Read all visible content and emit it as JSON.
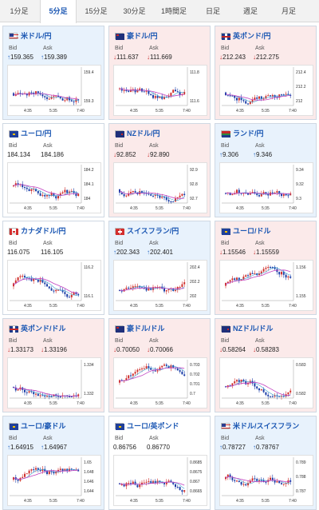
{
  "tabs": [
    {
      "label": "1分足",
      "active": false
    },
    {
      "label": "5分足",
      "active": true
    },
    {
      "label": "15分足",
      "active": false
    },
    {
      "label": "30分足",
      "active": false
    },
    {
      "label": "1時間足",
      "active": false
    },
    {
      "label": "日足",
      "active": false
    },
    {
      "label": "週足",
      "active": false
    },
    {
      "label": "月足",
      "active": false
    }
  ],
  "labels": {
    "bid": "Bid",
    "ask": "Ask"
  },
  "colors": {
    "up_bg": "#e8f2fc",
    "down_bg": "#fbeaea",
    "up": "#1f5fbf",
    "down": "#c62828",
    "candle_up": "#d0312d",
    "candle_down": "#1d3fa8",
    "ma_line": "#c040c0"
  },
  "cards": [
    {
      "pair": "米ドル/円",
      "flag": "flag-us-icon",
      "trend": "up",
      "bid": "159.365",
      "ask": "159.389",
      "ticks": [
        "159.4",
        "159.3"
      ],
      "xticks": [
        "4:35",
        "5:35",
        "7:40"
      ]
    },
    {
      "pair": "豪ドル/円",
      "flag": "flag-au-icon",
      "trend": "down",
      "bid": "111.637",
      "ask": "111.669",
      "ticks": [
        "111.8",
        "111.6"
      ],
      "xticks": [
        "4:35",
        "5:35",
        "7:40"
      ]
    },
    {
      "pair": "英ポンド/円",
      "flag": "flag-gb-icon",
      "trend": "down",
      "bid": "212.243",
      "ask": "212.275",
      "ticks": [
        "212.4",
        "212.2",
        "212"
      ],
      "xticks": [
        "4:35",
        "5:35",
        "7:40"
      ]
    },
    {
      "pair": "ユーロ/円",
      "flag": "flag-eu-icon",
      "trend": "flat",
      "bid": "184.134",
      "ask": "184.186",
      "ticks": [
        "184.2",
        "184.1",
        "184"
      ],
      "xticks": [
        "4:35",
        "5:35",
        "7:40"
      ]
    },
    {
      "pair": "NZドル/円",
      "flag": "flag-nz-icon",
      "trend": "down",
      "bid": "92.852",
      "ask": "92.890",
      "ticks": [
        "92.9",
        "92.8",
        "92.7"
      ],
      "xticks": [
        "4:35",
        "5:35",
        "7:40"
      ]
    },
    {
      "pair": "ランド/円",
      "flag": "flag-za-icon",
      "trend": "up",
      "bid": "9.306",
      "ask": "9.346",
      "ticks": [
        "9.34",
        "9.32",
        "9.3"
      ],
      "xticks": [
        "4:35",
        "5:35",
        "7:40"
      ]
    },
    {
      "pair": "カナダドル/円",
      "flag": "flag-ca-icon",
      "trend": "flat",
      "bid": "116.075",
      "ask": "116.105",
      "ticks": [
        "116.2",
        "116.1"
      ],
      "xticks": [
        "4:35",
        "5:35",
        "7:40"
      ]
    },
    {
      "pair": "スイスフラン/円",
      "flag": "flag-ch-icon",
      "trend": "up",
      "bid": "202.343",
      "ask": "202.401",
      "ticks": [
        "202.4",
        "202.2",
        "202"
      ],
      "xticks": [
        "4:35",
        "5:35",
        "7:40"
      ]
    },
    {
      "pair": "ユーロ/ドル",
      "flag": "flag-eu-icon",
      "trend": "down",
      "bid": "1.15546",
      "ask": "1.15559",
      "ticks": [
        "1.156",
        "1.155"
      ],
      "xticks": [
        "4:35",
        "5:35",
        "7:40"
      ]
    },
    {
      "pair": "英ポンド/ドル",
      "flag": "flag-gb-icon",
      "trend": "down",
      "bid": "1.33173",
      "ask": "1.33196",
      "ticks": [
        "1.334",
        "1.332"
      ],
      "xticks": [
        "4:35",
        "5:35",
        "7:40"
      ]
    },
    {
      "pair": "豪ドル/ドル",
      "flag": "flag-au-icon",
      "trend": "down",
      "bid": "0.70050",
      "ask": "0.70066",
      "ticks": [
        "0.703",
        "0.702",
        "0.701",
        "0.7"
      ],
      "xticks": [
        "4:35",
        "5:35",
        "7:40"
      ]
    },
    {
      "pair": "NZドル/ドル",
      "flag": "flag-nz-icon",
      "trend": "down",
      "bid": "0.58264",
      "ask": "0.58283",
      "ticks": [
        "0.583",
        "0.582"
      ],
      "xticks": [
        "4:35",
        "5:35",
        "7:40"
      ]
    },
    {
      "pair": "ユーロ/豪ドル",
      "flag": "flag-eu-icon",
      "trend": "up",
      "bid": "1.64915",
      "ask": "1.64967",
      "ticks": [
        "1.65",
        "1.648",
        "1.646",
        "1.644"
      ],
      "xticks": [
        "4:35",
        "5:35",
        "7:40"
      ]
    },
    {
      "pair": "ユーロ/英ポンド",
      "flag": "flag-eu-icon",
      "trend": "flat",
      "bid": "0.86756",
      "ask": "0.86770",
      "ticks": [
        "0.8685",
        "0.8675",
        "0.867",
        "0.8665"
      ],
      "xticks": [
        "4:35",
        "5:35",
        "7:40"
      ]
    },
    {
      "pair": "米ドル/スイスフラン",
      "flag": "flag-us-icon",
      "trend": "up",
      "bid": "0.78727",
      "ask": "0.78767",
      "ticks": [
        "0.789",
        "0.788",
        "0.787"
      ],
      "xticks": [
        "4:35",
        "5:35",
        "7:40"
      ]
    }
  ]
}
